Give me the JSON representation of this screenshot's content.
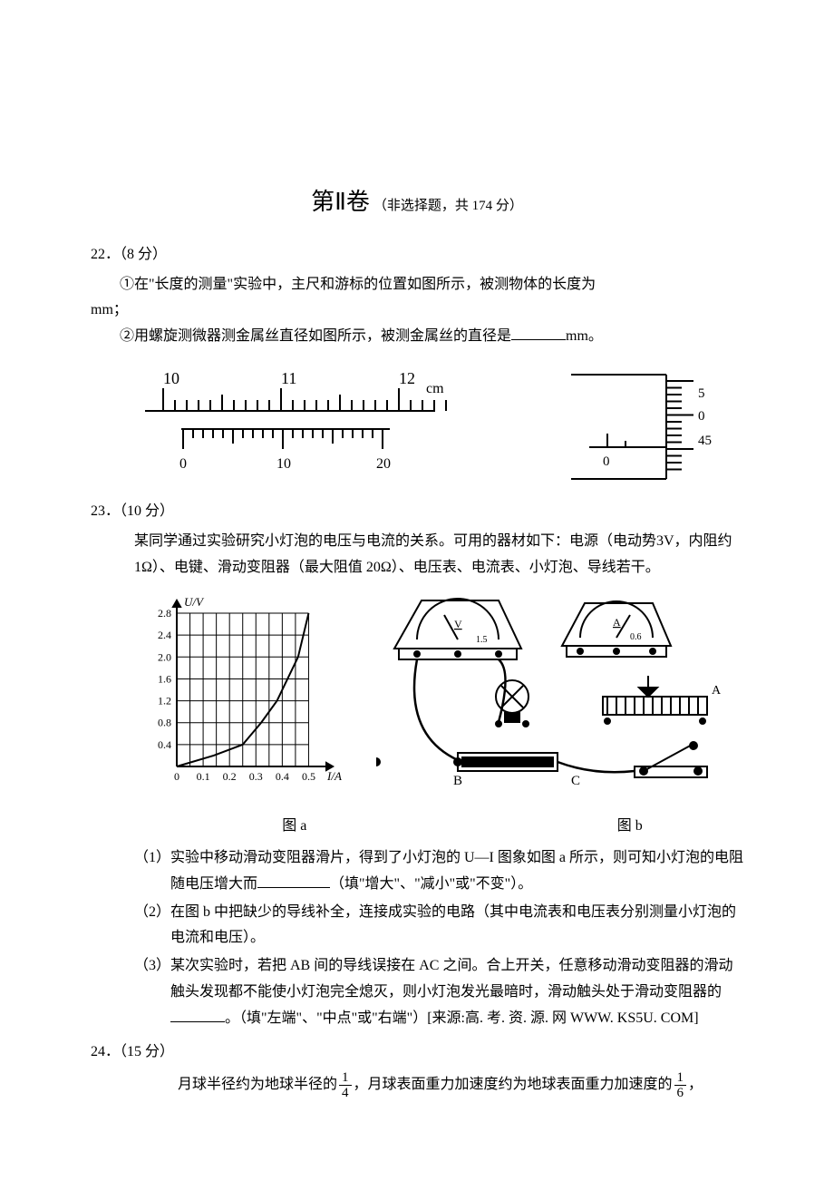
{
  "section": {
    "title_main": "第Ⅱ卷",
    "title_sub": "（非选择题，共 174 分）"
  },
  "q22": {
    "header": "22．（8 分）",
    "line1_pre": "①在\"长度的测量\"实验中，主尺和游标的位置如图所示，被测物体的长度为",
    "line1_unit": "mm；",
    "line2_pre": "②用螺旋测微器测金属丝直径如图所示，被测金属丝的直径是",
    "line2_unit": "mm。",
    "vernier": {
      "main_labels": [
        "10",
        "11",
        "12"
      ],
      "main_unit": "cm",
      "vernier_labels": [
        "0",
        "10",
        "20"
      ]
    },
    "micrometer": {
      "thimble_top": "5",
      "thimble_mid": "0",
      "thimble_bot": "45",
      "sleeve": "0"
    }
  },
  "q23": {
    "header": "23．（10 分）",
    "intro": "某同学通过实验研究小灯泡的电压与电流的关系。可用的器材如下：电源（电动势3V，内阻约 1Ω）、电键、滑动变阻器（最大阻值 20Ω）、电压表、电流表、小灯泡、导线若干。",
    "chart": {
      "ylabel": "U/V",
      "xlabel": "I/A",
      "yticks": [
        "2.8",
        "2.4",
        "2.0",
        "1.6",
        "1.2",
        "0.8",
        "0.4"
      ],
      "xticks": [
        "0",
        "0.1",
        "0.2",
        "0.3",
        "0.4",
        "0.5"
      ],
      "caption_a": "图 a",
      "caption_b": "图 b",
      "labels": {
        "B": "B",
        "C": "C",
        "V": "V",
        "A": "A",
        "v_scale": "1.5",
        "a_scale": "0.6"
      },
      "curve_points": [
        [
          0,
          0
        ],
        [
          0.14,
          0.2
        ],
        [
          0.25,
          0.4
        ],
        [
          0.32,
          0.8
        ],
        [
          0.38,
          1.2
        ],
        [
          0.42,
          1.6
        ],
        [
          0.46,
          2.0
        ],
        [
          0.48,
          2.4
        ],
        [
          0.5,
          2.8
        ]
      ]
    },
    "sub1_pre": "实验中移动滑动变阻器滑片，得到了小灯泡的 U—I 图象如图 a 所示，则可知小灯泡的电阻随电压增大而",
    "sub1_post": "（填\"增大\"、\"减小\"或\"不变\"）。",
    "sub2": "在图 b 中把缺少的导线补全，连接成实验的电路（其中电流表和电压表分别测量小灯泡的电流和电压）。",
    "sub3_pre": "某次实验时，若把 AB 间的导线误接在 AC 之间。合上开关，任意移动滑动变阻器的滑动触头发现都不能使小灯泡完全熄灭，则小灯泡发光最暗时，滑动触头处于滑动变阻器的",
    "sub3_post": "。（填\"左端\"、\"中点\"或\"右端\"）[来源:高. 考. 资. 源. 网 WWW. KS5U. COM]",
    "sub_labels": {
      "n1": "（1）",
      "n2": "（2）",
      "n3": "（3）"
    }
  },
  "q24": {
    "header": "24．（15 分）",
    "line_pre": "月球半径约为地球半径的",
    "frac1_top": "1",
    "frac1_bot": "4",
    "line_mid": "，月球表面重力加速度约为地球表面重力加速度的",
    "frac2_top": "1",
    "frac2_bot": "6",
    "line_end": "，"
  },
  "colors": {
    "text": "#000000",
    "bg": "#ffffff",
    "line": "#000000",
    "grid": "#000000"
  }
}
